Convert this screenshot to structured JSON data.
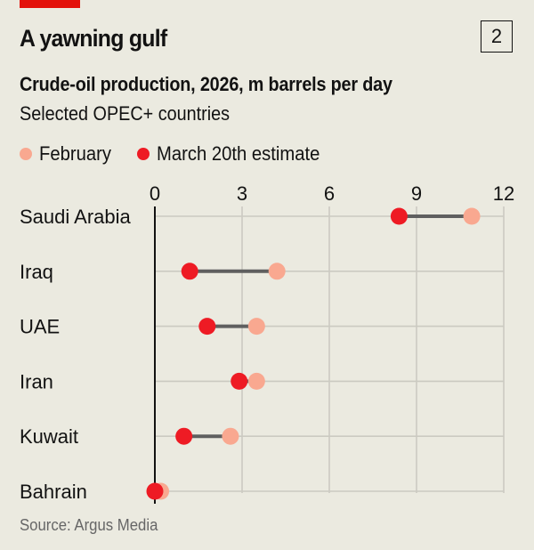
{
  "header": {
    "chart_number": "2",
    "title": "A yawning gulf",
    "subtitle": "Crude-oil production, 2026, m barrels per day",
    "subtitle2": "Selected OPEC+ countries"
  },
  "legend": [
    {
      "label": "February",
      "color": "#f9a890"
    },
    {
      "label": "March 20th estimate",
      "color": "#ee1b24"
    }
  ],
  "footer": {
    "source": "Source: Argus Media"
  },
  "colors": {
    "background": "#ebeae0",
    "brand_red": "#e3120b",
    "february": "#f9a890",
    "march": "#ee1b24",
    "connector": "#5f5f5f",
    "grid": "#cbcac1",
    "axis": "#121212"
  },
  "chart_data": {
    "type": "dumbbell",
    "title": "A yawning gulf",
    "subtitle": "Crude-oil production, 2026, m barrels per day",
    "xlabel": "m barrels per day",
    "ylabel": "",
    "xlim": [
      0,
      12
    ],
    "x_ticks": [
      0,
      3,
      6,
      9,
      12
    ],
    "grid": true,
    "legend_position": "top",
    "categories": [
      "Saudi Arabia",
      "Iraq",
      "UAE",
      "Iran",
      "Kuwait",
      "Bahrain"
    ],
    "series": [
      {
        "name": "February",
        "values": [
          10.9,
          4.2,
          3.5,
          3.5,
          2.6,
          0.2
        ]
      },
      {
        "name": "March 20th estimate",
        "values": [
          8.4,
          1.2,
          1.8,
          2.9,
          1.0,
          0.0
        ]
      }
    ],
    "source": "Source: Argus Media"
  }
}
